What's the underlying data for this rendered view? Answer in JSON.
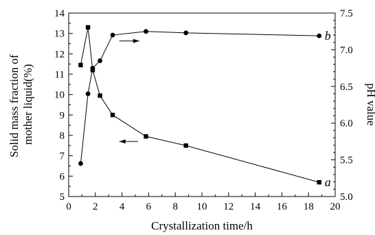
{
  "chart_data": {
    "type": "line",
    "xlabel": "Crystallization time/h",
    "ylabel_left": [
      "Solid mass fraction of",
      "mother liquid(%)"
    ],
    "ylabel_right": "pH value",
    "xlim": [
      0,
      20
    ],
    "ylim_left": [
      5,
      14
    ],
    "ylim_right": [
      5.0,
      7.5
    ],
    "x_ticks": [
      "0",
      "2",
      "4",
      "6",
      "8",
      "10",
      "12",
      "14",
      "16",
      "18",
      "20"
    ],
    "y_ticks_left": [
      "5",
      "6",
      "7",
      "8",
      "9",
      "10",
      "11",
      "12",
      "13",
      "14"
    ],
    "y_ticks_right": [
      "5.0",
      "5.5",
      "6.0",
      "6.5",
      "7.0",
      "7.5"
    ],
    "grid": false,
    "series": [
      {
        "label": "a",
        "axis": "left",
        "marker": "square",
        "points": [
          {
            "x": 0.9,
            "y": 11.45
          },
          {
            "x": 1.45,
            "y": 13.3
          },
          {
            "x": 1.8,
            "y": 11.2
          },
          {
            "x": 2.35,
            "y": 9.95
          },
          {
            "x": 3.3,
            "y": 9.0
          },
          {
            "x": 5.8,
            "y": 7.95
          },
          {
            "x": 8.8,
            "y": 7.5
          },
          {
            "x": 18.8,
            "y": 5.7
          }
        ]
      },
      {
        "label": "b",
        "axis": "right",
        "marker": "circle",
        "points": [
          {
            "x": 0.9,
            "y": 5.45
          },
          {
            "x": 1.45,
            "y": 6.4
          },
          {
            "x": 1.8,
            "y": 6.75
          },
          {
            "x": 2.35,
            "y": 6.85
          },
          {
            "x": 3.3,
            "y": 7.2
          },
          {
            "x": 5.8,
            "y": 7.25
          },
          {
            "x": 8.8,
            "y": 7.23
          },
          {
            "x": 18.8,
            "y": 7.19
          }
        ]
      }
    ],
    "annotations": [
      {
        "type": "arrow",
        "direction": "right",
        "axis": "right",
        "x1": 3.8,
        "x2": 5.3,
        "y": 7.12
      },
      {
        "type": "arrow",
        "direction": "left",
        "axis": "left",
        "x1": 5.2,
        "x2": 3.8,
        "y": 7.7
      }
    ]
  }
}
